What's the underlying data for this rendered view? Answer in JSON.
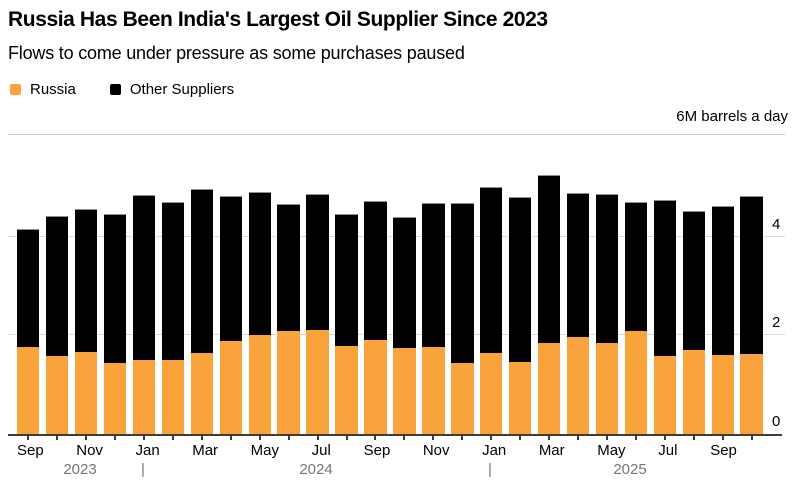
{
  "chart_data": {
    "type": "bar",
    "stacked": true,
    "title": "Russia Has Been India's Largest Oil Supplier Since 2023",
    "subtitle": "Flows to come under pressure as some purchases paused",
    "unit_label": "6M barrels a day",
    "legend": [
      {
        "name": "Russia",
        "color": "#f8a33c"
      },
      {
        "name": "Other Suppliers",
        "color": "#000000"
      }
    ],
    "ylim": [
      0,
      6.06
    ],
    "yticks": [
      "0",
      "2",
      "4"
    ],
    "grid": true,
    "legend_position": "top-left",
    "categories": [
      "Sep 2023",
      "Oct 2023",
      "Nov 2023",
      "Dec 2023",
      "Jan 2024",
      "Feb 2024",
      "Mar 2024",
      "Apr 2024",
      "May 2024",
      "Jun 2024",
      "Jul 2024",
      "Aug 2024",
      "Sep 2024",
      "Oct 2024",
      "Nov 2024",
      "Dec 2024",
      "Jan 2025",
      "Feb 2025",
      "Mar 2025",
      "Apr 2025",
      "May 2025",
      "Jun 2025",
      "Jul 2025",
      "Aug 2025",
      "Sep 2025",
      "Oct 2025"
    ],
    "series": [
      {
        "name": "Russia",
        "values": [
          1.76,
          1.58,
          1.66,
          1.44,
          1.49,
          1.49,
          1.64,
          1.88,
          2.0,
          2.08,
          2.1,
          1.78,
          1.9,
          1.75,
          1.76,
          1.44,
          1.64,
          1.46,
          1.84,
          1.96,
          1.84,
          2.08,
          1.58,
          1.7,
          1.6,
          1.62
        ]
      },
      {
        "name": "Other Suppliers",
        "values": [
          2.4,
          2.84,
          2.91,
          3.01,
          3.36,
          3.22,
          3.32,
          2.94,
          2.9,
          2.58,
          2.77,
          2.67,
          2.82,
          2.65,
          2.93,
          3.25,
          3.36,
          3.34,
          3.41,
          2.92,
          3.03,
          2.63,
          3.16,
          2.81,
          3.03,
          3.21
        ]
      }
    ],
    "x_tick_labels": [
      "Sep",
      "Nov",
      "Jan",
      "Mar",
      "May",
      "Jul",
      "Sep",
      "Nov",
      "Jan",
      "Mar",
      "May",
      "Jul",
      "Sep"
    ],
    "year_row": [
      "2023",
      "|",
      "2024",
      "|",
      "2025"
    ]
  },
  "colors": {
    "russia": "#f8a33c",
    "other": "#000000",
    "grid": "#d9d9d9",
    "axis": "#3c3c3c",
    "year_text": "#757575"
  }
}
